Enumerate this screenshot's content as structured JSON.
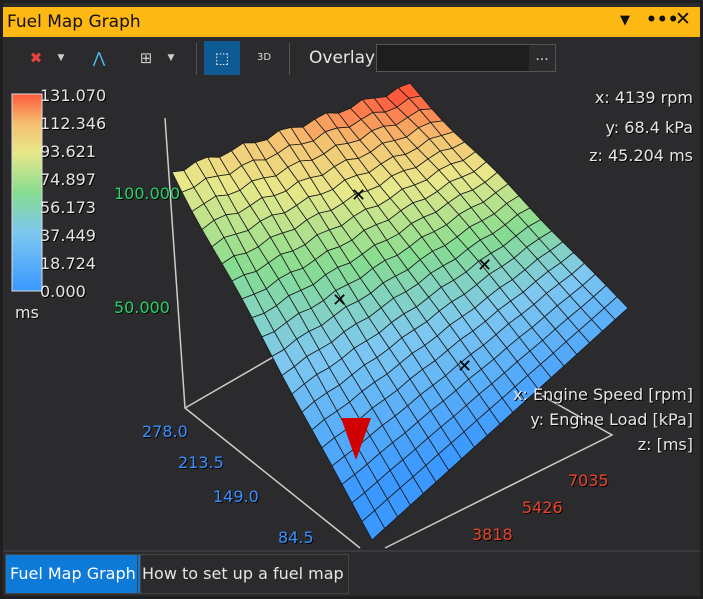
{
  "window": {
    "title": "Fuel Map Graph"
  },
  "toolbar": {
    "overlay_label": "Overlay",
    "overlay_value": "",
    "browse_label": "...",
    "view_3d_label": "3D"
  },
  "colorbar": {
    "ticks": [
      "131.070",
      "112.346",
      "93.621",
      "74.897",
      "56.173",
      "37.449",
      "18.724",
      "0.000"
    ],
    "unit": "ms",
    "colors": [
      "#ff5a3c",
      "#f5c878",
      "#e8e88a",
      "#8fe07a",
      "#7ec8e8",
      "#3a98ff"
    ]
  },
  "readout": {
    "x": "x: 4139 rpm",
    "y": "y: 68.4 kPa",
    "z": "z: 45.204 ms"
  },
  "axes": {
    "z_ticks": [
      "100.000",
      "50.000"
    ],
    "y_ticks": [
      "278.0",
      "213.5",
      "149.0",
      "84.5"
    ],
    "x_ticks": [
      "3818",
      "5426",
      "7035"
    ],
    "x_label": "x: Engine Speed [rpm]",
    "y_label": "y: Engine Load [kPa]",
    "z_label": "z:  [ms]"
  },
  "tabs": [
    {
      "label": "Fuel Map Graph",
      "active": true
    },
    {
      "label": "How to set up a fuel map",
      "active": false
    }
  ]
}
